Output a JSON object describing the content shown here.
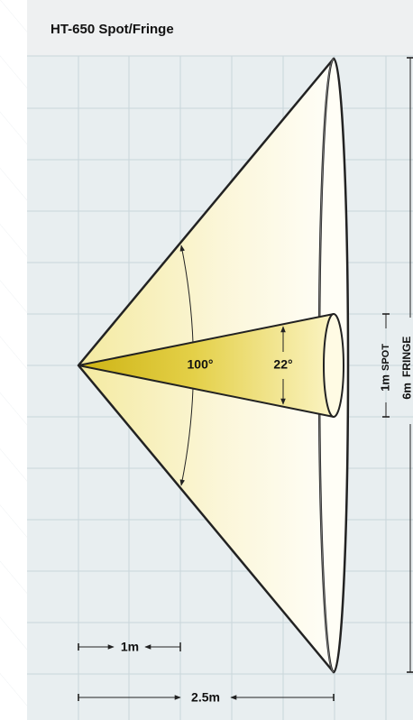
{
  "header": {
    "title": "HT-650 Spot/Fringe"
  },
  "diagram": {
    "angles": {
      "fringe": "100°",
      "spot": "22°"
    },
    "dimensions": {
      "spot_size": "1m",
      "spot_label": "SPOT",
      "fringe_size": "6m",
      "fringe_label": "FRINGE",
      "spot_distance": "1m",
      "fringe_distance": "2.5m"
    }
  }
}
